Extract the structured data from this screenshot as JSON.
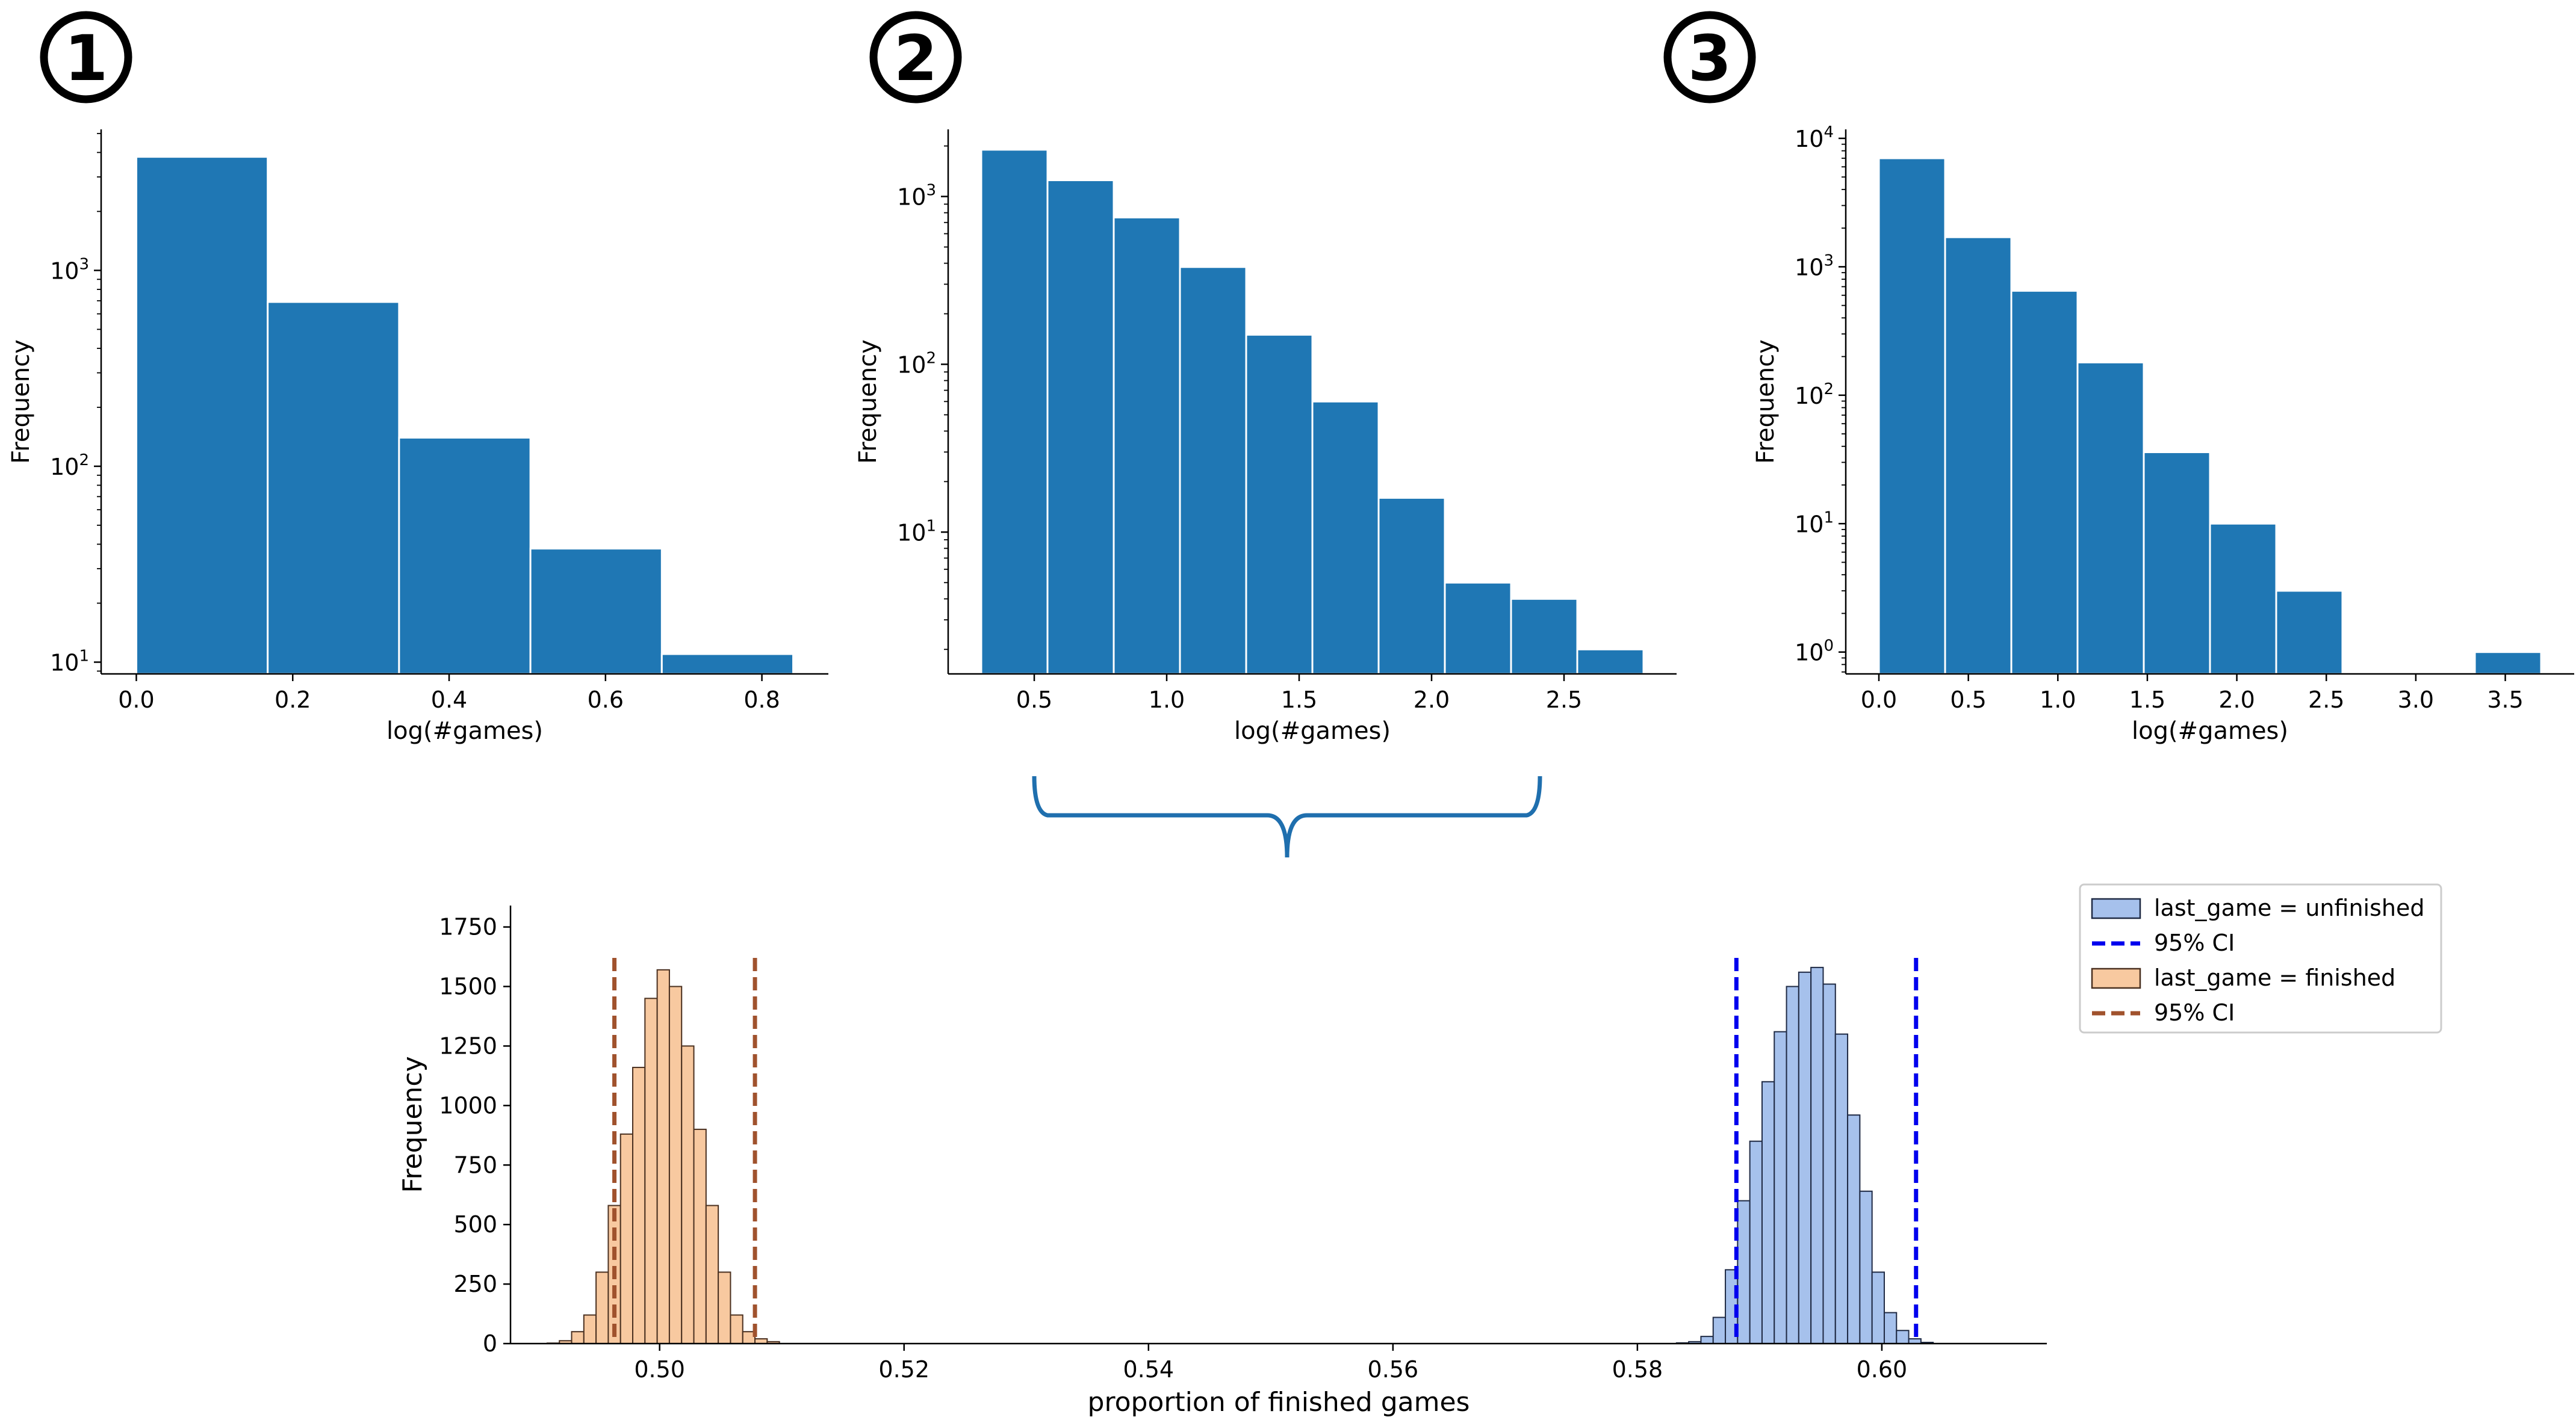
{
  "colors": {
    "bar": "#1f77b4",
    "unfinished_fill": "#a6c1ec",
    "unfinished_edge": "#1f2a44",
    "finished_fill": "#f8c9a0",
    "finished_edge": "#4a3020",
    "ci_blue": "#0000ee",
    "ci_brown": "#a0522d",
    "brace": "#1f6fae"
  },
  "badges": [
    "1",
    "2",
    "3"
  ],
  "chart_data": [
    {
      "type": "bar",
      "panel": "1",
      "scale": "log",
      "xlabel": "log(#games)",
      "ylabel": "Frequency",
      "bin_edges": [
        0.0,
        0.168,
        0.336,
        0.504,
        0.672,
        0.84
      ],
      "values": [
        3800,
        690,
        140,
        38,
        11
      ],
      "xlim": [
        -0.045,
        0.885
      ],
      "ylim_log10": [
        0.94,
        3.72
      ],
      "xticks": [
        0.0,
        0.2,
        0.4,
        0.6,
        0.8
      ],
      "xticklabels": [
        "0.0",
        "0.2",
        "0.4",
        "0.6",
        "0.8"
      ],
      "yticks_log10": [
        1,
        2,
        3
      ],
      "yticklabels": [
        "10",
        "10",
        "10"
      ],
      "yticksups": [
        "1",
        "2",
        "3"
      ],
      "grid": false
    },
    {
      "type": "bar",
      "panel": "2",
      "scale": "log",
      "xlabel": "log(#games)",
      "ylabel": "Frequency",
      "bin_edges": [
        0.3,
        0.55,
        0.8,
        1.05,
        1.3,
        1.55,
        1.8,
        2.05,
        2.3,
        2.55,
        2.8
      ],
      "values": [
        1900,
        1250,
        750,
        380,
        150,
        60,
        16,
        5,
        4,
        2
      ],
      "xlim": [
        0.175,
        2.925
      ],
      "ylim_log10": [
        0.155,
        3.4
      ],
      "xticks": [
        0.5,
        1.0,
        1.5,
        2.0,
        2.5
      ],
      "xticklabels": [
        "0.5",
        "1.0",
        "1.5",
        "2.0",
        "2.5"
      ],
      "yticks_log10": [
        1,
        2,
        3
      ],
      "yticklabels": [
        "10",
        "10",
        "10"
      ],
      "yticksups": [
        "1",
        "2",
        "3"
      ],
      "grid": false
    },
    {
      "type": "bar",
      "panel": "3",
      "scale": "log",
      "xlabel": "log(#games)",
      "ylabel": "Frequency",
      "bin_edges": [
        0.0,
        0.37,
        0.74,
        1.11,
        1.48,
        1.85,
        2.22,
        2.59,
        2.96,
        3.33,
        3.7
      ],
      "values": [
        7000,
        1700,
        650,
        180,
        36,
        10,
        3,
        0,
        0,
        1
      ],
      "xlim": [
        -0.185,
        3.885
      ],
      "ylim_log10": [
        -0.17,
        4.07
      ],
      "xticks": [
        0.0,
        0.5,
        1.0,
        1.5,
        2.0,
        2.5,
        3.0,
        3.5
      ],
      "xticklabels": [
        "0.0",
        "0.5",
        "1.0",
        "1.5",
        "2.0",
        "2.5",
        "3.0",
        "3.5"
      ],
      "yticks_log10": [
        0,
        1,
        2,
        3,
        4
      ],
      "yticklabels": [
        "10",
        "10",
        "10",
        "10",
        "10"
      ],
      "yticksups": [
        "0",
        "1",
        "2",
        "3",
        "4"
      ],
      "grid": false
    },
    {
      "type": "bar",
      "panel": "bootstrap",
      "scale": "linear",
      "xlabel": "proportion of finished games",
      "ylabel": "Frequency",
      "xlim": [
        0.4878,
        0.6135
      ],
      "ylim": [
        0,
        1840
      ],
      "xticks": [
        0.5,
        0.52,
        0.54,
        0.56,
        0.58,
        0.6
      ],
      "xticklabels": [
        "0.50",
        "0.52",
        "0.54",
        "0.56",
        "0.58",
        "0.60"
      ],
      "yticks": [
        0,
        250,
        500,
        750,
        1000,
        1250,
        1500,
        1750
      ],
      "yticklabels": [
        "0",
        "250",
        "500",
        "750",
        "1000",
        "1250",
        "1500",
        "1750"
      ],
      "series": [
        {
          "name": "last_game = unfinished",
          "bin_start": 0.5832,
          "bin_width": 0.001,
          "values": [
            3,
            8,
            30,
            110,
            310,
            600,
            850,
            1100,
            1310,
            1500,
            1560,
            1580,
            1510,
            1300,
            960,
            640,
            300,
            130,
            55,
            20,
            5
          ]
        },
        {
          "name": "last_game = finished",
          "bin_start": 0.4908,
          "bin_width": 0.001,
          "values": [
            2,
            12,
            50,
            120,
            300,
            580,
            880,
            1160,
            1450,
            1570,
            1500,
            1250,
            900,
            580,
            300,
            120,
            50,
            20,
            8
          ]
        }
      ],
      "ci": [
        {
          "name": "95% CI",
          "for": "last_game = unfinished",
          "bounds": [
            0.5881,
            0.6028
          ]
        },
        {
          "name": "95% CI",
          "for": "last_game = finished",
          "bounds": [
            0.4963,
            0.5078
          ]
        }
      ],
      "legend_entries": [
        "last_game = unfinished",
        "95% CI",
        "last_game = finished",
        "95% CI"
      ],
      "legend_position": "upper-right",
      "grid": false
    }
  ]
}
